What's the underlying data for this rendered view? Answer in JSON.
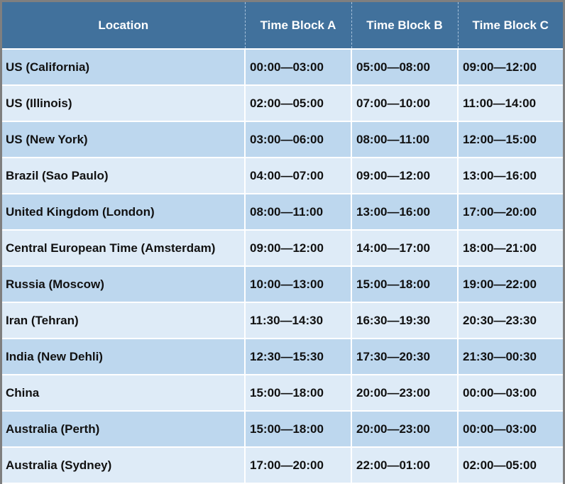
{
  "table": {
    "headers": [
      "Location",
      "Time Block A",
      "Time Block B",
      "Time Block C"
    ],
    "rows": [
      [
        "US (California)",
        "00:00—03:00",
        "05:00—08:00",
        "09:00—12:00"
      ],
      [
        "US (Illinois)",
        "02:00—05:00",
        "07:00—10:00",
        "11:00—14:00"
      ],
      [
        "US (New York)",
        "03:00—06:00",
        "08:00—11:00",
        "12:00—15:00"
      ],
      [
        "Brazil (Sao Paulo)",
        "04:00—07:00",
        "09:00—12:00",
        "13:00—16:00"
      ],
      [
        "United Kingdom (London)",
        "08:00—11:00",
        "13:00—16:00",
        "17:00—20:00"
      ],
      [
        "Central European Time (Amsterdam)",
        "09:00—12:00",
        "14:00—17:00",
        "18:00—21:00"
      ],
      [
        "Russia (Moscow)",
        "10:00—13:00",
        "15:00—18:00",
        "19:00—22:00"
      ],
      [
        "Iran (Tehran)",
        "11:30—14:30",
        "16:30—19:30",
        "20:30—23:30"
      ],
      [
        "India (New Dehli)",
        "12:30—15:30",
        "17:30—20:30",
        "21:30—00:30"
      ],
      [
        "China",
        "15:00—18:00",
        "20:00—23:00",
        "00:00—03:00"
      ],
      [
        "Australia (Perth)",
        "15:00—18:00",
        "20:00—23:00",
        "00:00—03:00"
      ],
      [
        "Australia (Sydney)",
        "17:00—20:00",
        "22:00—01:00",
        "02:00—05:00"
      ]
    ]
  },
  "colors": {
    "header": "#41719c",
    "row_odd": "#bdd7ee",
    "row_even": "#deebf7"
  }
}
